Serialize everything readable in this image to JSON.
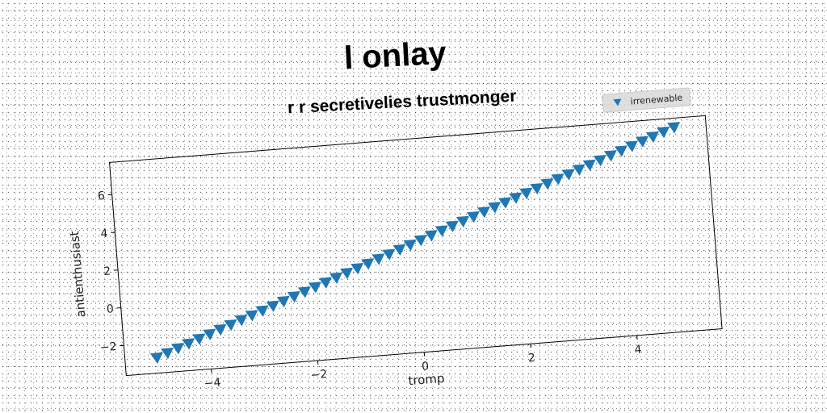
{
  "chart_data": {
    "type": "scatter",
    "title": "l onlay",
    "subtitle": "r r secretivelies trustmonger",
    "xlabel": "tromp",
    "ylabel": "antienthusiast",
    "xlim": [
      -5.6,
      5.6
    ],
    "ylim": [
      -3.6,
      7.7
    ],
    "xticks": [
      -4,
      -2,
      0,
      2,
      4
    ],
    "xtick_labels": [
      "−4",
      "−2",
      "0",
      "2",
      "4"
    ],
    "yticks": [
      -2,
      0,
      2,
      4,
      6
    ],
    "ytick_labels": [
      "−2",
      "0",
      "2",
      "4",
      "6"
    ],
    "grid": false,
    "legend_position": "top-right",
    "marker": "triangle-down",
    "series": [
      {
        "name": "irrenewable",
        "color": "#1f77b4",
        "x_start": -5.0,
        "x_end": 5.0,
        "count": 50,
        "slope": 1.0,
        "intercept": 2.2
      }
    ]
  }
}
